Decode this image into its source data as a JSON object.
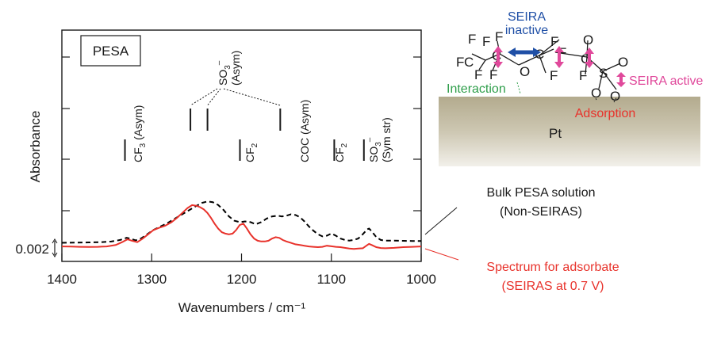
{
  "chart_data": {
    "type": "line",
    "title": "",
    "sample_label": "PESA",
    "xlabel": "Wavenumbers / cm⁻¹",
    "ylabel": "Absorbance",
    "xlim": [
      1400,
      1000
    ],
    "x_ticks": [
      "1400",
      "1300",
      "1200",
      "1100",
      "1000"
    ],
    "scale_bar": "0.002",
    "series": [
      {
        "name": "Bulk PESA solution (Non-SEIRAS)",
        "style": "dashed",
        "color": "#000000",
        "x": [
          1400,
          1385,
          1370,
          1355,
          1345,
          1335,
          1328,
          1324,
          1318,
          1312,
          1305,
          1298,
          1290,
          1282,
          1274,
          1266,
          1258,
          1250,
          1244,
          1238,
          1232,
          1226,
          1220,
          1214,
          1208,
          1202,
          1196,
          1190,
          1184,
          1178,
          1172,
          1166,
          1160,
          1155,
          1150,
          1145,
          1140,
          1135,
          1130,
          1125,
          1120,
          1115,
          1110,
          1105,
          1100,
          1095,
          1090,
          1085,
          1080,
          1075,
          1070,
          1065,
          1060,
          1058,
          1055,
          1050,
          1045,
          1040,
          1030,
          1020,
          1010,
          1000
        ],
        "y": [
          0.0005,
          0.00052,
          0.00056,
          0.0006,
          0.00068,
          0.0009,
          0.0012,
          0.0011,
          0.00085,
          0.0011,
          0.0017,
          0.0023,
          0.0028,
          0.0033,
          0.0039,
          0.0045,
          0.0051,
          0.0057,
          0.0061,
          0.0063,
          0.0062,
          0.0058,
          0.0051,
          0.0042,
          0.0036,
          0.0034,
          0.0035,
          0.0034,
          0.0031,
          0.0034,
          0.0039,
          0.0042,
          0.0043,
          0.0042,
          0.0043,
          0.0045,
          0.0044,
          0.0041,
          0.0035,
          0.0028,
          0.0022,
          0.0017,
          0.0014,
          0.0015,
          0.0018,
          0.0015,
          0.0011,
          0.0009,
          0.0008,
          0.0009,
          0.0011,
          0.0017,
          0.0024,
          0.0025,
          0.0021,
          0.0013,
          0.0009,
          0.0008,
          0.0008,
          0.00078,
          0.00076,
          0.00075
        ]
      },
      {
        "name": "Spectrum for adsorbate (SEIRAS at 0.7 V)",
        "style": "solid",
        "color": "#e8322b",
        "x": [
          1400,
          1390,
          1380,
          1370,
          1360,
          1350,
          1340,
          1333,
          1327,
          1322,
          1316,
          1310,
          1304,
          1298,
          1292,
          1285,
          1278,
          1272,
          1266,
          1260,
          1255,
          1250,
          1246,
          1242,
          1238,
          1234,
          1230,
          1226,
          1222,
          1218,
          1214,
          1210,
          1206,
          1202,
          1198,
          1194,
          1190,
          1186,
          1182,
          1178,
          1174,
          1170,
          1166,
          1162,
          1158,
          1154,
          1150,
          1145,
          1140,
          1135,
          1130,
          1125,
          1120,
          1115,
          1110,
          1105,
          1100,
          1095,
          1090,
          1085,
          1080,
          1075,
          1070,
          1065,
          1060,
          1058,
          1055,
          1050,
          1045,
          1040,
          1030,
          1020,
          1010,
          1000
        ],
        "y": [
          0.0001,
          8e-05,
          5e-05,
          3e-05,
          4e-05,
          0.0001,
          0.0003,
          0.0007,
          0.0011,
          0.0009,
          0.0007,
          0.0012,
          0.0018,
          0.0024,
          0.0027,
          0.003,
          0.0035,
          0.0041,
          0.0048,
          0.0055,
          0.0059,
          0.0058,
          0.0056,
          0.0053,
          0.0048,
          0.0041,
          0.0033,
          0.0026,
          0.0021,
          0.0019,
          0.0018,
          0.0019,
          0.0024,
          0.0031,
          0.0033,
          0.0026,
          0.0018,
          0.0012,
          0.0009,
          0.0008,
          0.0008,
          0.0009,
          0.0012,
          0.0014,
          0.0013,
          0.001,
          0.0008,
          0.0006,
          0.0004,
          0.0003,
          0.0002,
          0.0001,
          5e-05,
          0,
          5e-05,
          0.0002,
          0.00012,
          5e-05,
          0,
          -0.0001,
          -0.0002,
          -0.00025,
          -0.0002,
          -0.00015,
          0.0003,
          0.00045,
          0.0003,
          0,
          -0.00012,
          -0.00015,
          -0.0001,
          0,
          5e-05,
          0.0001
        ]
      }
    ],
    "band_labels": [
      {
        "text": "CF",
        "sub": "3",
        "rest": " (Asym)",
        "x": 1320
      },
      {
        "text": "CF",
        "sub": "2",
        "rest": "",
        "x": 1198
      },
      {
        "text": "COC (Asym)",
        "sub": "",
        "rest": "",
        "x": 1142
      },
      {
        "text": "CF",
        "sub": "2",
        "rest": "",
        "x": 1092
      },
      {
        "text": "SO",
        "sub": "3",
        "sup": "–",
        "rest": "",
        "second": "(Sym str)",
        "x": 1062
      },
      {
        "text": "SO",
        "sub": "3",
        "sup": "–",
        "rest": "",
        "second": "(Asym)",
        "x": 1225
      }
    ],
    "band_markers": [
      1328,
      1200,
      1095,
      1062
    ],
    "so3_asym_markers": [
      1256,
      1237,
      1156
    ]
  },
  "legend": {
    "bulk_line1": "Bulk PESA solution",
    "bulk_line2": "(Non-SEIRAS)",
    "ads_line1": "Spectrum for adsorbate",
    "ads_line2": "(SEIRAS at 0.7 V)"
  },
  "schematic": {
    "electrode_label": "Pt",
    "seira_inactive_line1": "SEIRA",
    "seira_inactive_line2": "inactive",
    "seira_active": "SEIRA active",
    "interaction": "Interaction",
    "adsorption": "Adsorption",
    "colors": {
      "inactive": "#1f4fa6",
      "active": "#e0499b",
      "interaction": "#2e9e4a",
      "adsorption": "#e8322b"
    }
  }
}
